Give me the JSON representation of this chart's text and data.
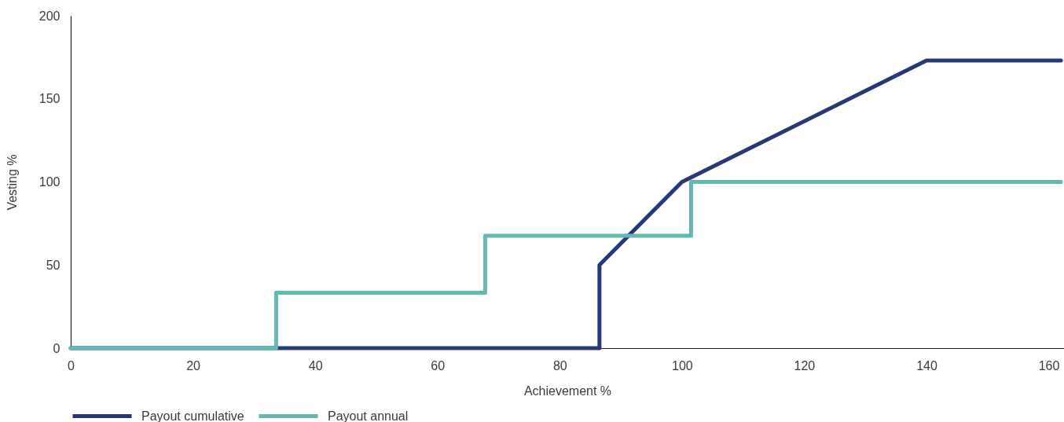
{
  "chart_data": {
    "type": "line",
    "xlabel": "Achievement %",
    "ylabel": "Vesting %",
    "xlim": [
      0,
      162.5
    ],
    "xticks": [
      0,
      20,
      40,
      60,
      80,
      100,
      120,
      140,
      160
    ],
    "ylim": [
      0,
      200
    ],
    "yticks": [
      0,
      50,
      100,
      150,
      200
    ],
    "grid": false,
    "legend": "bottom",
    "series": [
      {
        "name": "Payout cumulative",
        "color": "#283777",
        "type": "line",
        "x": [
          0,
          86.5,
          86.5,
          100,
          140,
          162
        ],
        "values": [
          0,
          0,
          50,
          100,
          173,
          173
        ]
      },
      {
        "name": "Payout annual",
        "color": "#63b8b2",
        "type": "step",
        "x": [
          0,
          33.6,
          67.8,
          101.5,
          162
        ],
        "values": [
          0,
          33.3,
          67.6,
          100,
          100
        ]
      }
    ]
  }
}
